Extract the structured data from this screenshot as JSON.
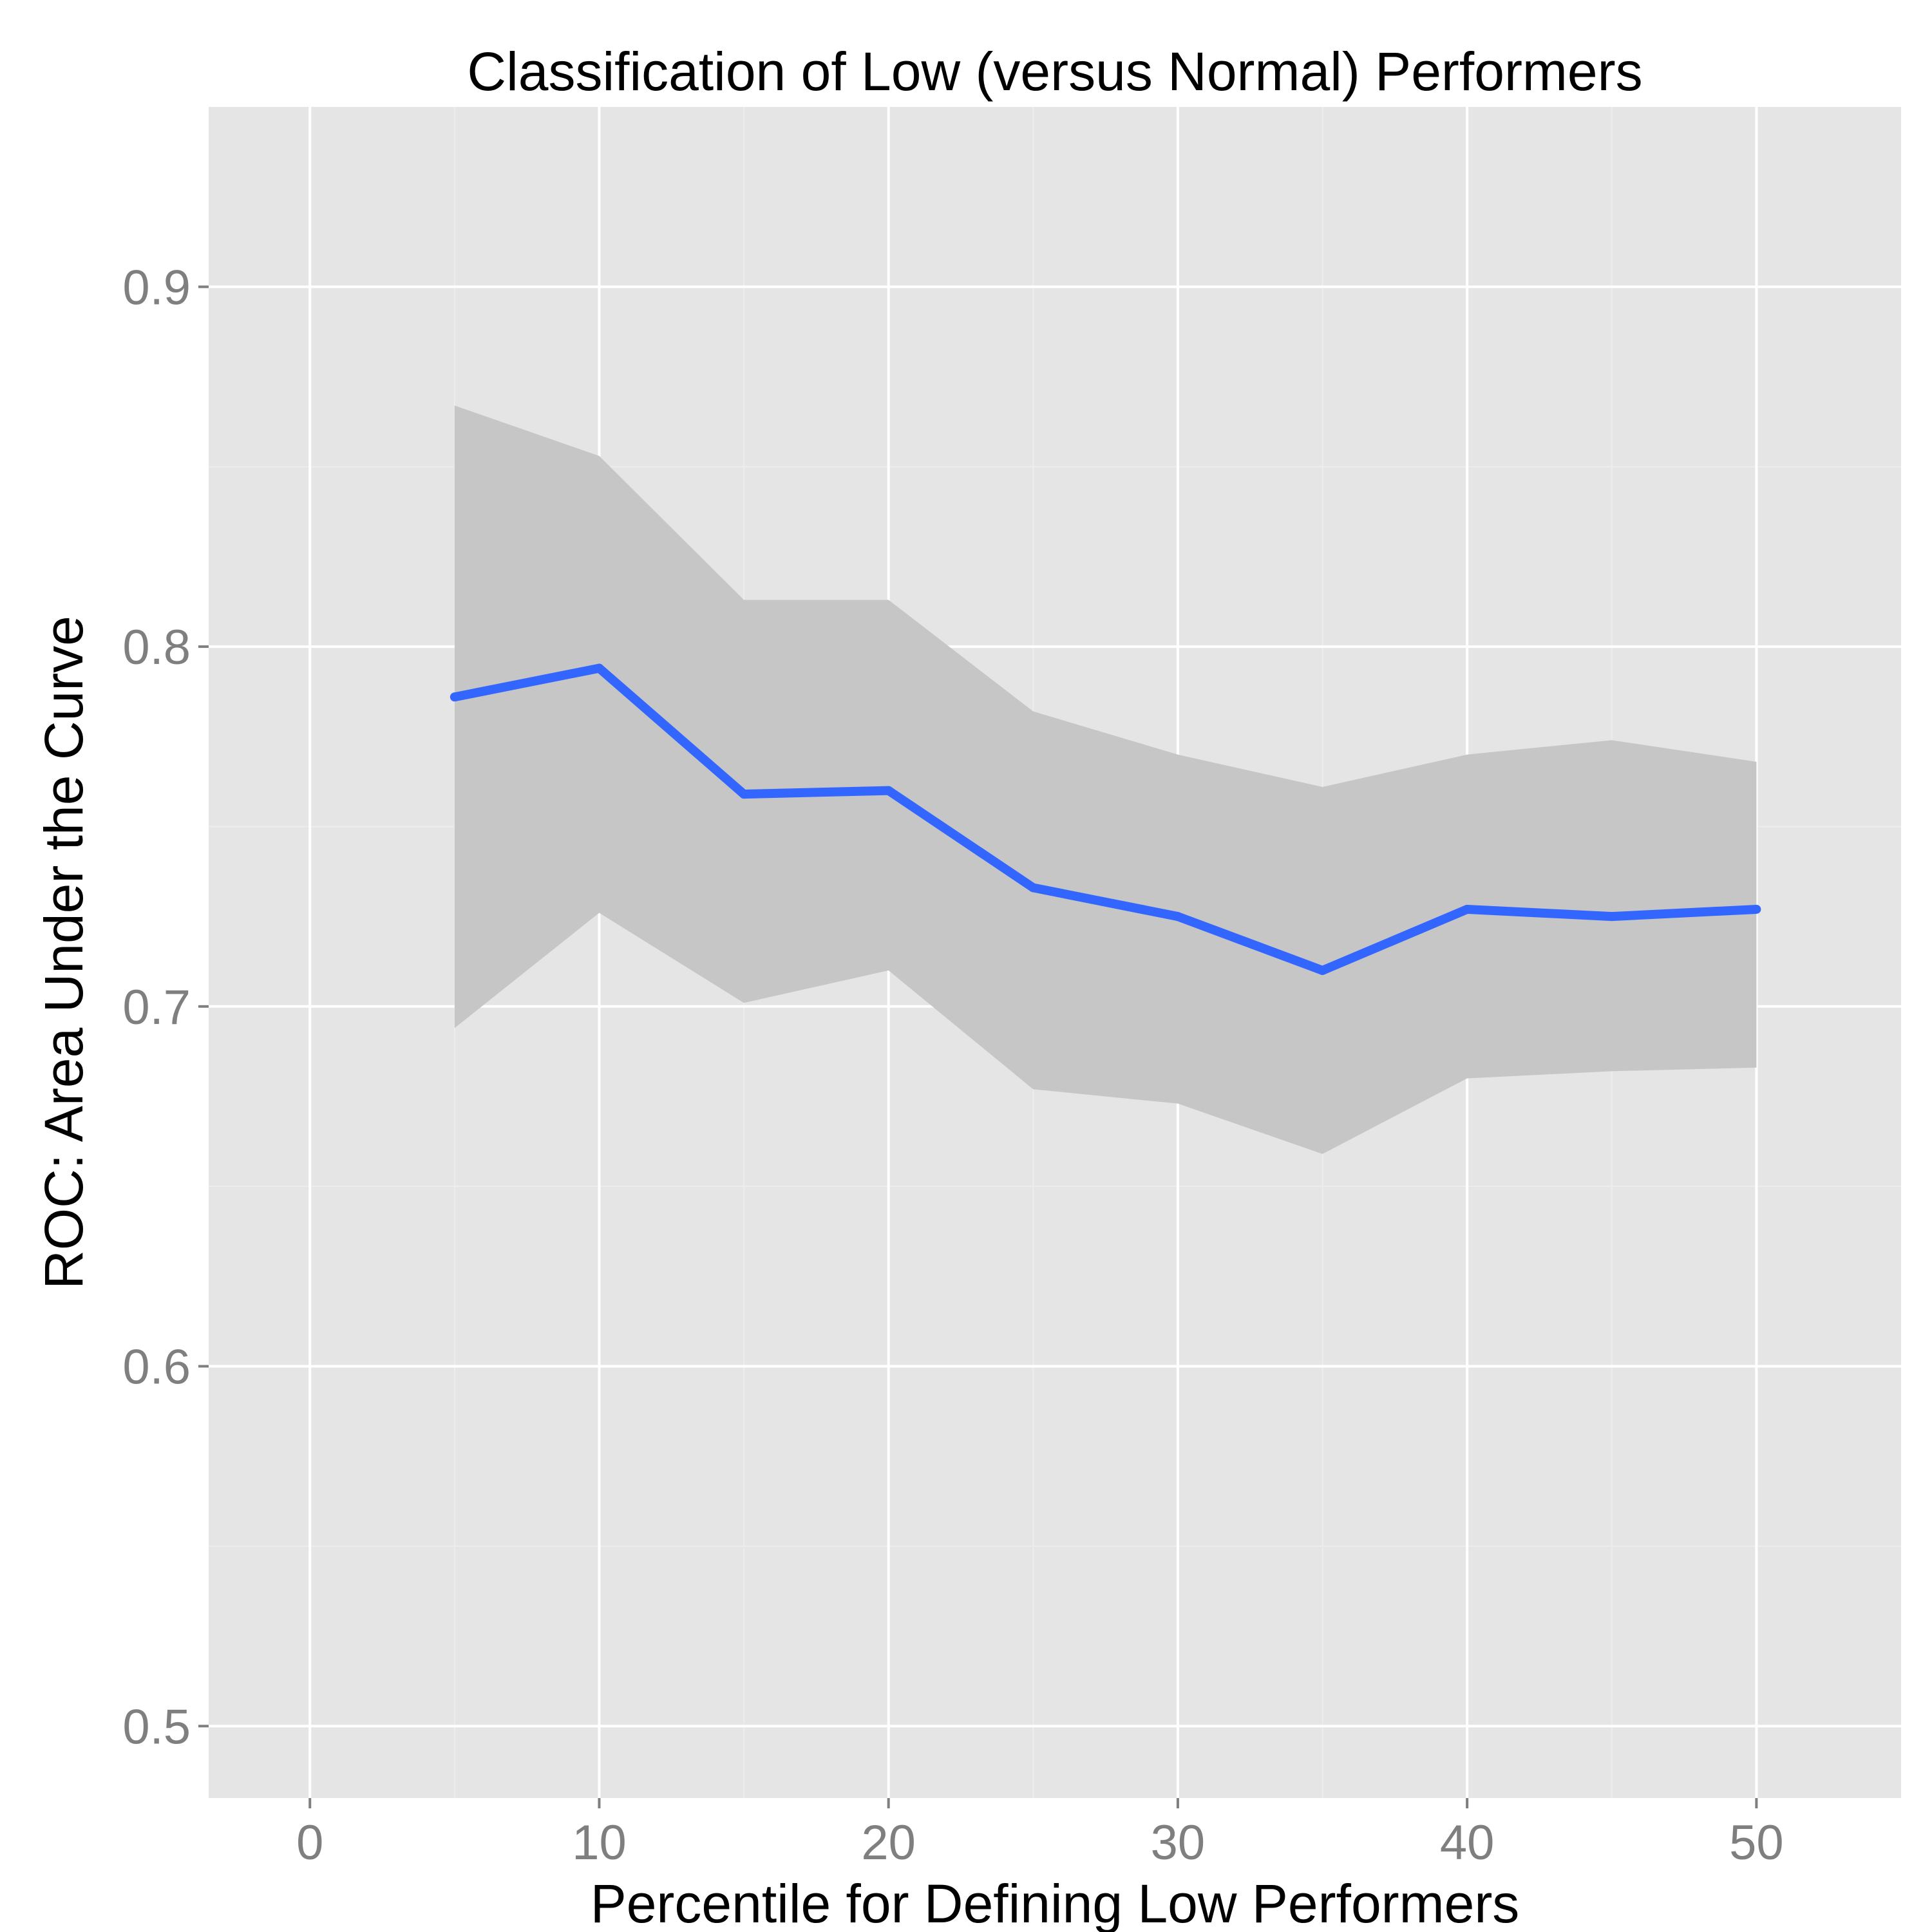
{
  "chart_data": {
    "type": "line",
    "title": "Classification of Low (versus Normal) Performers",
    "xlabel": "Percentile for Defining Low Performers",
    "ylabel": "ROC: Area Under the Curve",
    "xlim": [
      -3.5,
      55
    ],
    "ylim": [
      0.48,
      0.95
    ],
    "x_ticks": [
      0,
      10,
      20,
      30,
      40,
      50
    ],
    "x_tick_labels": [
      "0",
      "10",
      "20",
      "30",
      "40",
      "50"
    ],
    "y_ticks": [
      0.5,
      0.6,
      0.7,
      0.8,
      0.9
    ],
    "y_tick_labels": [
      "0.5",
      "0.6",
      "0.7",
      "0.8",
      "0.9"
    ],
    "grid": true,
    "x": [
      5,
      10,
      15,
      20,
      25,
      30,
      35,
      40,
      45,
      50
    ],
    "series": [
      {
        "values": [
          0.786,
          0.794,
          0.759,
          0.76,
          0.733,
          0.725,
          0.71,
          0.727,
          0.725,
          0.727
        ],
        "lower": [
          0.694,
          0.726,
          0.701,
          0.71,
          0.677,
          0.673,
          0.659,
          0.68,
          0.682,
          0.683
        ],
        "upper": [
          0.867,
          0.853,
          0.813,
          0.813,
          0.782,
          0.77,
          0.761,
          0.77,
          0.774,
          0.768
        ]
      }
    ],
    "colors": {
      "line": "#3366ff",
      "ribbon": "#c6c6c6",
      "panel": "#e5e5e5",
      "grid_major": "#ffffff",
      "grid_minor": "#ededed",
      "tick_label": "#7f7f7f"
    }
  }
}
